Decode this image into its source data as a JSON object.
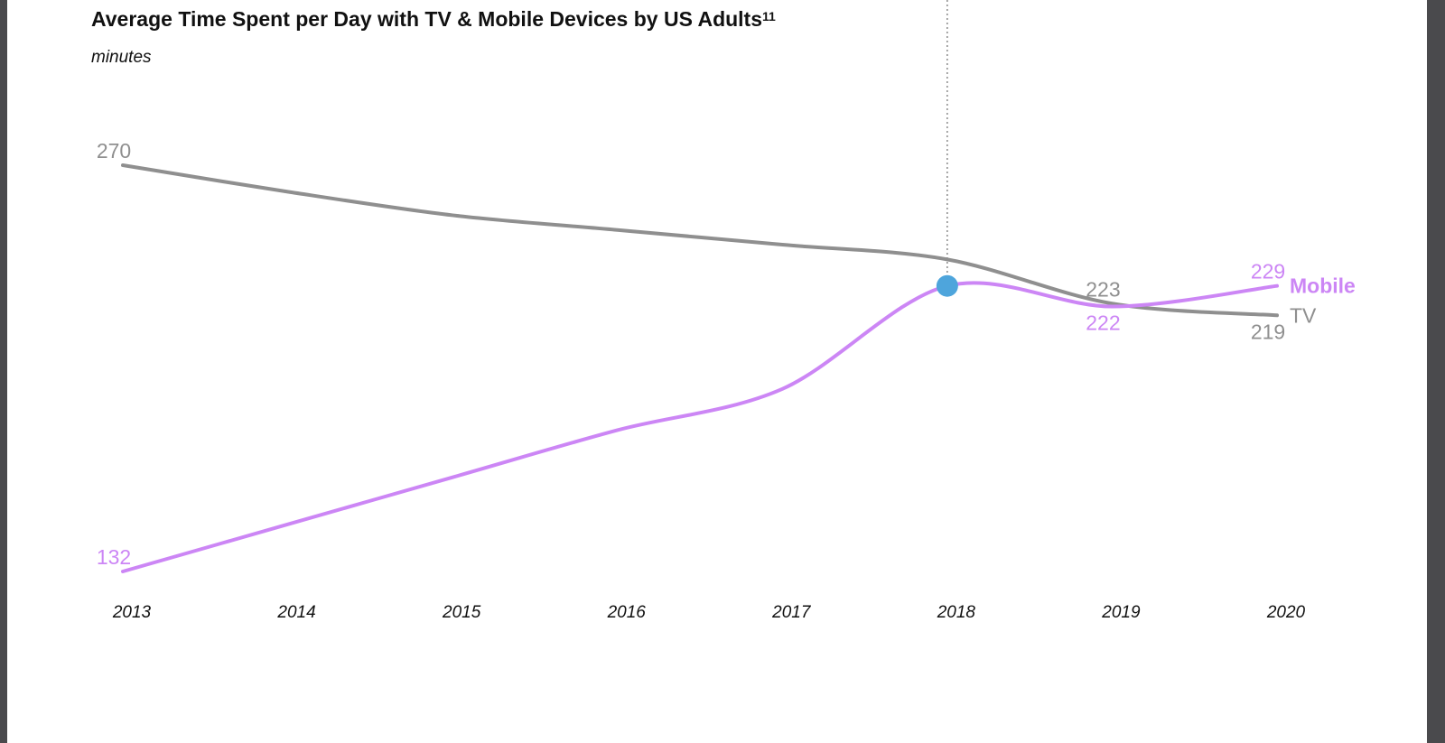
{
  "chart_data": {
    "type": "line",
    "title": "Average Time Spent per Day with TV & Mobile Devices by US Adults",
    "title_footnote": "11",
    "ylabel": "minutes",
    "xlabel": "",
    "categories": [
      "2013",
      "2014",
      "2015",
      "2016",
      "2017",
      "2018",
      "2019",
      "2020"
    ],
    "ylim": [
      132,
      270
    ],
    "series": [
      {
        "name": "TV",
        "color": "#8f8f8f",
        "values": [
          270,
          261,
          253,
          248,
          243,
          238,
          223,
          219
        ],
        "labels": [
          {
            "index": 0,
            "text": "270",
            "position": "above"
          },
          {
            "index": 6,
            "text": "223",
            "position": "above"
          },
          {
            "index": 7,
            "text": "219",
            "position": "below"
          }
        ]
      },
      {
        "name": "Mobile",
        "color": "#cc86f5",
        "values": [
          132,
          148,
          164,
          180,
          194,
          229,
          222,
          229
        ],
        "labels": [
          {
            "index": 0,
            "text": "132",
            "position": "above"
          },
          {
            "index": 6,
            "text": "222",
            "position": "below"
          },
          {
            "index": 7,
            "text": "229",
            "position": "above"
          }
        ]
      }
    ],
    "annotations": [
      {
        "type": "marker-with-dotted-line",
        "x": "2018",
        "series": "Mobile",
        "color": "#4ea5dc"
      }
    ]
  }
}
